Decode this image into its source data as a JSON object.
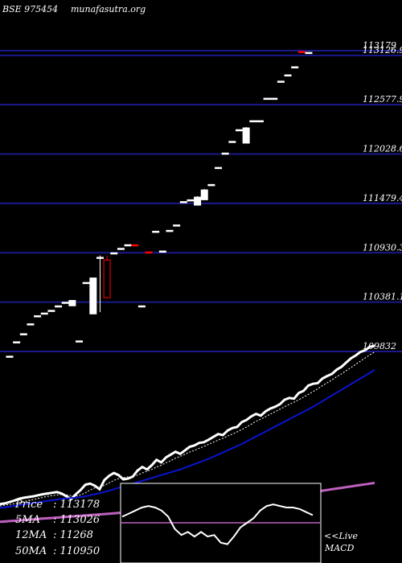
{
  "header": {
    "symbol": "BSE 975454",
    "site": "munafasutra.org"
  },
  "chart_data": [
    {
      "type": "candlestick",
      "ylim": [
        109600,
        113300
      ],
      "levels": [
        "113179",
        "113126.9",
        "112577.9",
        "112028.6",
        "111479.4",
        "110930.3",
        "110381.1",
        "109832"
      ],
      "level_values": [
        113179,
        113126.9,
        112577.9,
        112028.6,
        111479.4,
        110930.3,
        110381.1,
        109832
      ],
      "candles": [
        {
          "o": 109780,
          "h": 109780,
          "l": 109780,
          "c": 109780,
          "col": "white"
        },
        {
          "o": 109940,
          "h": 109940,
          "l": 109940,
          "c": 109940,
          "col": "white"
        },
        {
          "o": 110030,
          "h": 110030,
          "l": 110030,
          "c": 110030,
          "col": "white"
        },
        {
          "o": 110140,
          "h": 110140,
          "l": 110140,
          "c": 110140,
          "col": "white"
        },
        {
          "o": 110230,
          "h": 110230,
          "l": 110230,
          "c": 110230,
          "col": "white"
        },
        {
          "o": 110260,
          "h": 110260,
          "l": 110260,
          "c": 110260,
          "col": "white"
        },
        {
          "o": 110290,
          "h": 110290,
          "l": 110290,
          "c": 110290,
          "col": "white"
        },
        {
          "o": 110340,
          "h": 110340,
          "l": 110340,
          "c": 110340,
          "col": "white"
        },
        {
          "o": 110380,
          "h": 110380,
          "l": 110380,
          "c": 110380,
          "col": "white"
        },
        {
          "o": 110340,
          "h": 110400,
          "l": 110340,
          "c": 110400,
          "col": "white"
        },
        {
          "o": 109950,
          "h": 109950,
          "l": 109950,
          "c": 109950,
          "col": "white"
        },
        {
          "o": 110600,
          "h": 110600,
          "l": 110600,
          "c": 110600,
          "col": "white"
        },
        {
          "o": 110650,
          "h": 110650,
          "l": 110250,
          "c": 110250,
          "col": "white"
        },
        {
          "o": 110880,
          "h": 110900,
          "l": 110270,
          "c": 110870,
          "col": "white"
        },
        {
          "o": 110850,
          "h": 110900,
          "l": 110430,
          "c": 110430,
          "col": "red"
        },
        {
          "o": 110930,
          "h": 110930,
          "l": 110930,
          "c": 110930,
          "col": "white"
        },
        {
          "o": 110980,
          "h": 110980,
          "l": 110980,
          "c": 110980,
          "col": "white"
        },
        {
          "o": 111020,
          "h": 111020,
          "l": 111020,
          "c": 111020,
          "col": "white"
        },
        {
          "o": 111020,
          "h": 111020,
          "l": 111020,
          "c": 111020,
          "col": "red"
        },
        {
          "o": 110340,
          "h": 110340,
          "l": 110340,
          "c": 110340,
          "col": "white"
        },
        {
          "o": 110940,
          "h": 110940,
          "l": 110940,
          "c": 110940,
          "col": "red"
        },
        {
          "o": 111170,
          "h": 111170,
          "l": 111170,
          "c": 111170,
          "col": "white"
        },
        {
          "o": 110950,
          "h": 110950,
          "l": 110950,
          "c": 110950,
          "col": "white"
        },
        {
          "o": 111180,
          "h": 111180,
          "l": 111180,
          "c": 111180,
          "col": "white"
        },
        {
          "o": 111240,
          "h": 111240,
          "l": 111240,
          "c": 111240,
          "col": "white"
        },
        {
          "o": 111500,
          "h": 111500,
          "l": 111500,
          "c": 111500,
          "col": "white"
        },
        {
          "o": 111520,
          "h": 111520,
          "l": 111520,
          "c": 111520,
          "col": "white"
        },
        {
          "o": 111460,
          "h": 111560,
          "l": 111460,
          "c": 111550,
          "col": "white"
        },
        {
          "o": 111520,
          "h": 111640,
          "l": 111520,
          "c": 111630,
          "col": "white"
        },
        {
          "o": 111690,
          "h": 111690,
          "l": 111690,
          "c": 111690,
          "col": "white"
        },
        {
          "o": 111880,
          "h": 111880,
          "l": 111880,
          "c": 111880,
          "col": "white"
        },
        {
          "o": 112040,
          "h": 112040,
          "l": 112040,
          "c": 112040,
          "col": "white"
        },
        {
          "o": 112170,
          "h": 112170,
          "l": 112170,
          "c": 112170,
          "col": "white"
        },
        {
          "o": 112300,
          "h": 112300,
          "l": 112300,
          "c": 112300,
          "col": "white"
        },
        {
          "o": 112150,
          "h": 112330,
          "l": 112150,
          "c": 112320,
          "col": "white"
        },
        {
          "o": 112400,
          "h": 112400,
          "l": 112400,
          "c": 112400,
          "col": "white"
        },
        {
          "o": 112400,
          "h": 112400,
          "l": 112400,
          "c": 112400,
          "col": "white"
        },
        {
          "o": 112650,
          "h": 112650,
          "l": 112650,
          "c": 112650,
          "col": "white"
        },
        {
          "o": 112650,
          "h": 112650,
          "l": 112650,
          "c": 112650,
          "col": "white"
        },
        {
          "o": 112840,
          "h": 112840,
          "l": 112840,
          "c": 112840,
          "col": "white"
        },
        {
          "o": 112910,
          "h": 112910,
          "l": 112910,
          "c": 112910,
          "col": "white"
        },
        {
          "o": 113000,
          "h": 113000,
          "l": 113000,
          "c": 113000,
          "col": "white"
        },
        {
          "o": 113170,
          "h": 113170,
          "l": 113170,
          "c": 113170,
          "col": "red"
        },
        {
          "o": 113160,
          "h": 113160,
          "l": 113160,
          "c": 113160,
          "col": "white"
        }
      ]
    },
    {
      "type": "line",
      "series": [
        {
          "key": "price",
          "color": "#ffffff",
          "width": 3,
          "values": [
            30,
            32,
            36,
            40,
            45,
            48,
            50,
            52,
            55,
            58,
            60,
            62,
            64,
            60,
            52,
            44,
            58,
            70,
            85,
            88,
            82,
            72,
            98,
            110,
            118,
            112,
            100,
            102,
            108,
            125,
            135,
            128,
            140,
            155,
            148,
            162,
            170,
            178,
            172,
            182,
            192,
            196,
            203,
            205,
            212,
            220,
            228,
            225,
            238,
            245,
            248,
            262,
            268,
            278,
            285,
            280,
            292,
            300,
            305,
            312,
            325,
            330,
            328,
            344,
            350,
            365,
            370,
            372,
            385,
            392,
            398,
            410,
            418,
            430,
            442,
            450,
            460,
            465,
            475,
            477
          ]
        },
        {
          "key": "ma5",
          "color": "#ffffff",
          "width": 1,
          "dash": "2,2",
          "values": [
            25,
            27,
            29,
            31,
            34,
            37,
            40,
            43,
            46,
            49,
            52,
            54,
            56,
            57,
            56,
            54,
            53,
            56,
            62,
            70,
            76,
            78,
            83,
            90,
            97,
            102,
            105,
            107,
            108,
            112,
            118,
            123,
            128,
            135,
            140,
            147,
            153,
            160,
            165,
            171,
            177,
            182,
            188,
            193,
            199,
            205,
            211,
            216,
            222,
            228,
            234,
            241,
            248,
            256,
            264,
            270,
            277,
            284,
            291,
            298,
            305,
            312,
            318,
            325,
            332,
            340,
            348,
            356,
            365,
            373,
            381,
            390,
            398,
            407,
            416,
            425,
            434,
            443,
            452,
            460
          ]
        },
        {
          "key": "ma12",
          "color": "#0a14d0",
          "width": 2,
          "values": [
            20,
            21,
            23,
            25,
            27,
            29,
            31,
            33,
            35,
            37,
            39,
            41,
            43,
            45,
            46,
            47,
            48,
            50,
            52,
            55,
            58,
            61,
            64,
            68,
            72,
            76,
            80,
            84,
            88,
            92,
            96,
            100,
            104,
            108,
            112,
            116,
            120,
            124,
            128,
            133,
            138,
            143,
            148,
            153,
            158,
            164,
            170,
            176,
            182,
            188,
            194,
            200,
            207,
            214,
            221,
            228,
            235,
            242,
            249,
            256,
            263,
            270,
            277,
            284,
            291,
            298,
            305,
            313,
            321,
            329,
            337,
            345,
            353,
            361,
            369,
            377,
            385,
            393,
            401,
            409
          ]
        },
        {
          "key": "ma50",
          "color": "#c060c0",
          "width": 3,
          "values": [
            -20,
            -19,
            -18,
            -17,
            -16,
            -15,
            -14,
            -13,
            -12,
            -11,
            -10,
            -9,
            -8,
            -7,
            -6,
            -5,
            -4,
            -3,
            -2,
            -1,
            0,
            1,
            2,
            3,
            4,
            5,
            6,
            7,
            8,
            9,
            10,
            11,
            12,
            13,
            14,
            15,
            16,
            17,
            18,
            19,
            20,
            21,
            22,
            23,
            24,
            25,
            26,
            27,
            28,
            30,
            32,
            34,
            36,
            38,
            40,
            42,
            44,
            46,
            48,
            50,
            52,
            54,
            56,
            58,
            60,
            62,
            64,
            66,
            68,
            70,
            72,
            74,
            76,
            78,
            80,
            82,
            84,
            86,
            88,
            90
          ]
        }
      ]
    },
    {
      "type": "line",
      "name": "MACD",
      "signal_level": 0,
      "values": [
        4,
        6,
        8,
        10,
        11,
        10,
        8,
        4,
        -4,
        -8,
        -6,
        -9,
        -6,
        -9,
        -8,
        -13,
        -14,
        -9,
        -3,
        0,
        3,
        8,
        11,
        12,
        11,
        10,
        10,
        9,
        7,
        5
      ]
    }
  ],
  "stats": [
    {
      "label": "Price",
      "value": "113178"
    },
    {
      "label": "5MA",
      "value": "113026"
    },
    {
      "label": "12MA",
      "value": "11268"
    },
    {
      "label": "50MA",
      "value": "110950"
    }
  ],
  "macd": {
    "live": "<<Live",
    "label": "MACD"
  },
  "colors": {
    "background": "#000000",
    "level_line": "#1a1a8c",
    "bull": "#ffffff",
    "bear": "#ff0000",
    "ma12": "#0a14d0",
    "ma50": "#c060c0",
    "macd_signal": "#c060c0"
  }
}
